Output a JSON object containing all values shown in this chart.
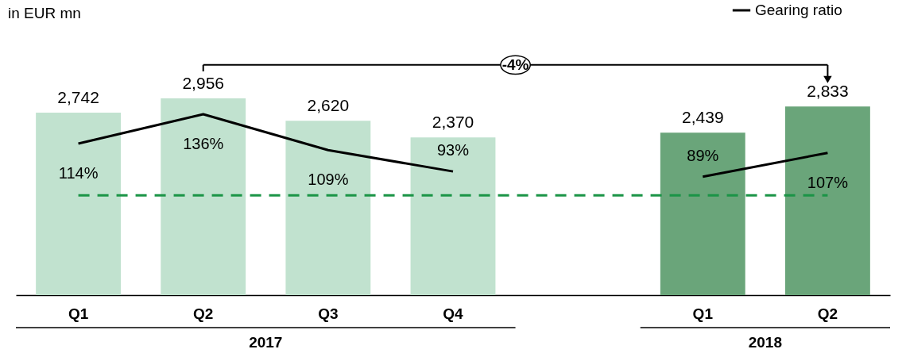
{
  "chart_data": {
    "type": "bar",
    "categories": [
      "Q1",
      "Q2",
      "Q3",
      "Q4",
      null,
      "Q1",
      "Q2"
    ],
    "series": [
      {
        "values": [
          2742,
          2956,
          2620,
          2370,
          null,
          2439,
          2833
        ],
        "colors": [
          "#c1e2cf",
          "#c1e2cf",
          "#c1e2cf",
          "#c1e2cf",
          null,
          "#6aa57a",
          "#6aa57a"
        ],
        "value_labels": [
          "2,742",
          "2,956",
          "2,620",
          "2,370",
          null,
          "2,439",
          "2,833"
        ]
      },
      {
        "type": "line",
        "name": "Gearing ratio",
        "axis": "y2",
        "color": "#000000",
        "values": [
          114,
          136,
          109,
          93,
          null,
          89,
          107
        ],
        "value_labels": [
          "114%",
          "136%",
          "109%",
          "93%",
          null,
          "89%",
          "107%"
        ]
      }
    ],
    "ref_lines": [
      {
        "axis": "y2",
        "value": 75,
        "color": "#1a9446",
        "line_style": "dashed"
      }
    ],
    "annotations": [
      "in EUR mn",
      "-4%",
      "2017",
      "2018"
    ],
    "legend": "top right"
  }
}
